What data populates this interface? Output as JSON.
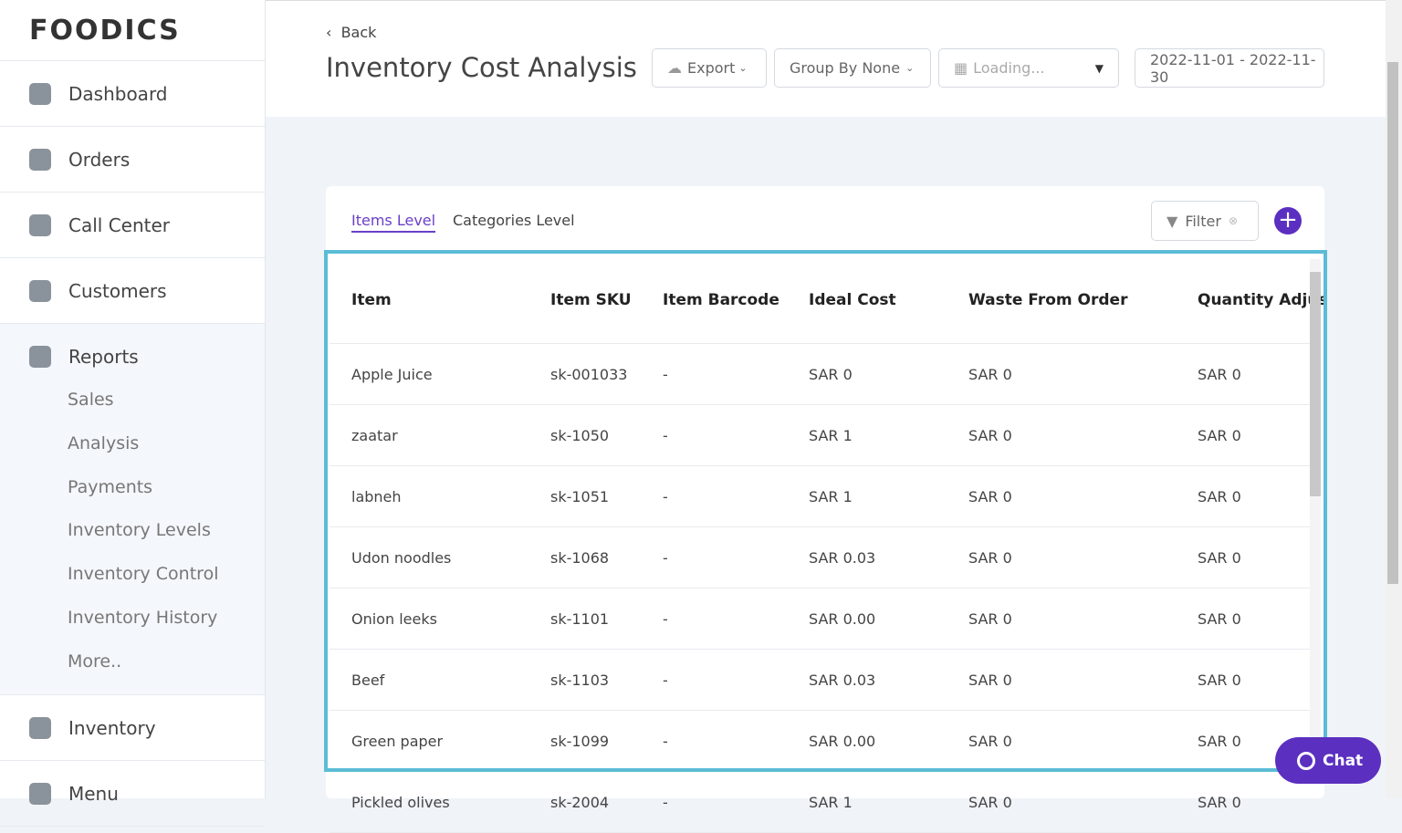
{
  "sidebar": {
    "logo": "FOODICS",
    "nav": [
      "Dashboard",
      "Orders",
      "Call Center",
      "Customers",
      "Reports"
    ],
    "reports_sub": [
      "Sales",
      "Analysis",
      "Payments",
      "Inventory Levels",
      "Inventory Control",
      "Inventory History",
      "More.."
    ],
    "nav_bottom": [
      "Inventory",
      "Menu"
    ]
  },
  "header": {
    "back": "Back",
    "title": "Inventory Cost Analysis",
    "export": "Export",
    "group_by": "Group By None",
    "branch": "Loading...",
    "date_range": "2022-11-01 - 2022-11-30"
  },
  "tabs": [
    "Items Level",
    "Categories Level"
  ],
  "filter": "Filter",
  "table": {
    "columns": [
      "Item",
      "Item SKU",
      "Item Barcode",
      "Ideal Cost",
      "Waste From Order",
      "Quantity Adjus"
    ],
    "rows": [
      [
        "Apple Juice",
        "sk-001033",
        "-",
        "SAR 0",
        "SAR 0",
        "SAR 0"
      ],
      [
        "zaatar",
        "sk-1050",
        "-",
        "SAR 1",
        "SAR 0",
        "SAR 0"
      ],
      [
        "labneh",
        "sk-1051",
        "-",
        "SAR 1",
        "SAR 0",
        "SAR 0"
      ],
      [
        "Udon noodles",
        "sk-1068",
        "-",
        "SAR 0.03",
        "SAR 0",
        "SAR 0"
      ],
      [
        "Onion leeks",
        "sk-1101",
        "-",
        "SAR 0.00",
        "SAR 0",
        "SAR 0"
      ],
      [
        "Beef",
        "sk-1103",
        "-",
        "SAR 0.03",
        "SAR 0",
        "SAR 0"
      ],
      [
        "Green paper",
        "sk-1099",
        "-",
        "SAR 0.00",
        "SAR 0",
        "SAR 0"
      ],
      [
        "Pickled olives",
        "sk-2004",
        "-",
        "SAR 1",
        "SAR 0",
        "SAR 0"
      ]
    ]
  },
  "chat": "Chat"
}
